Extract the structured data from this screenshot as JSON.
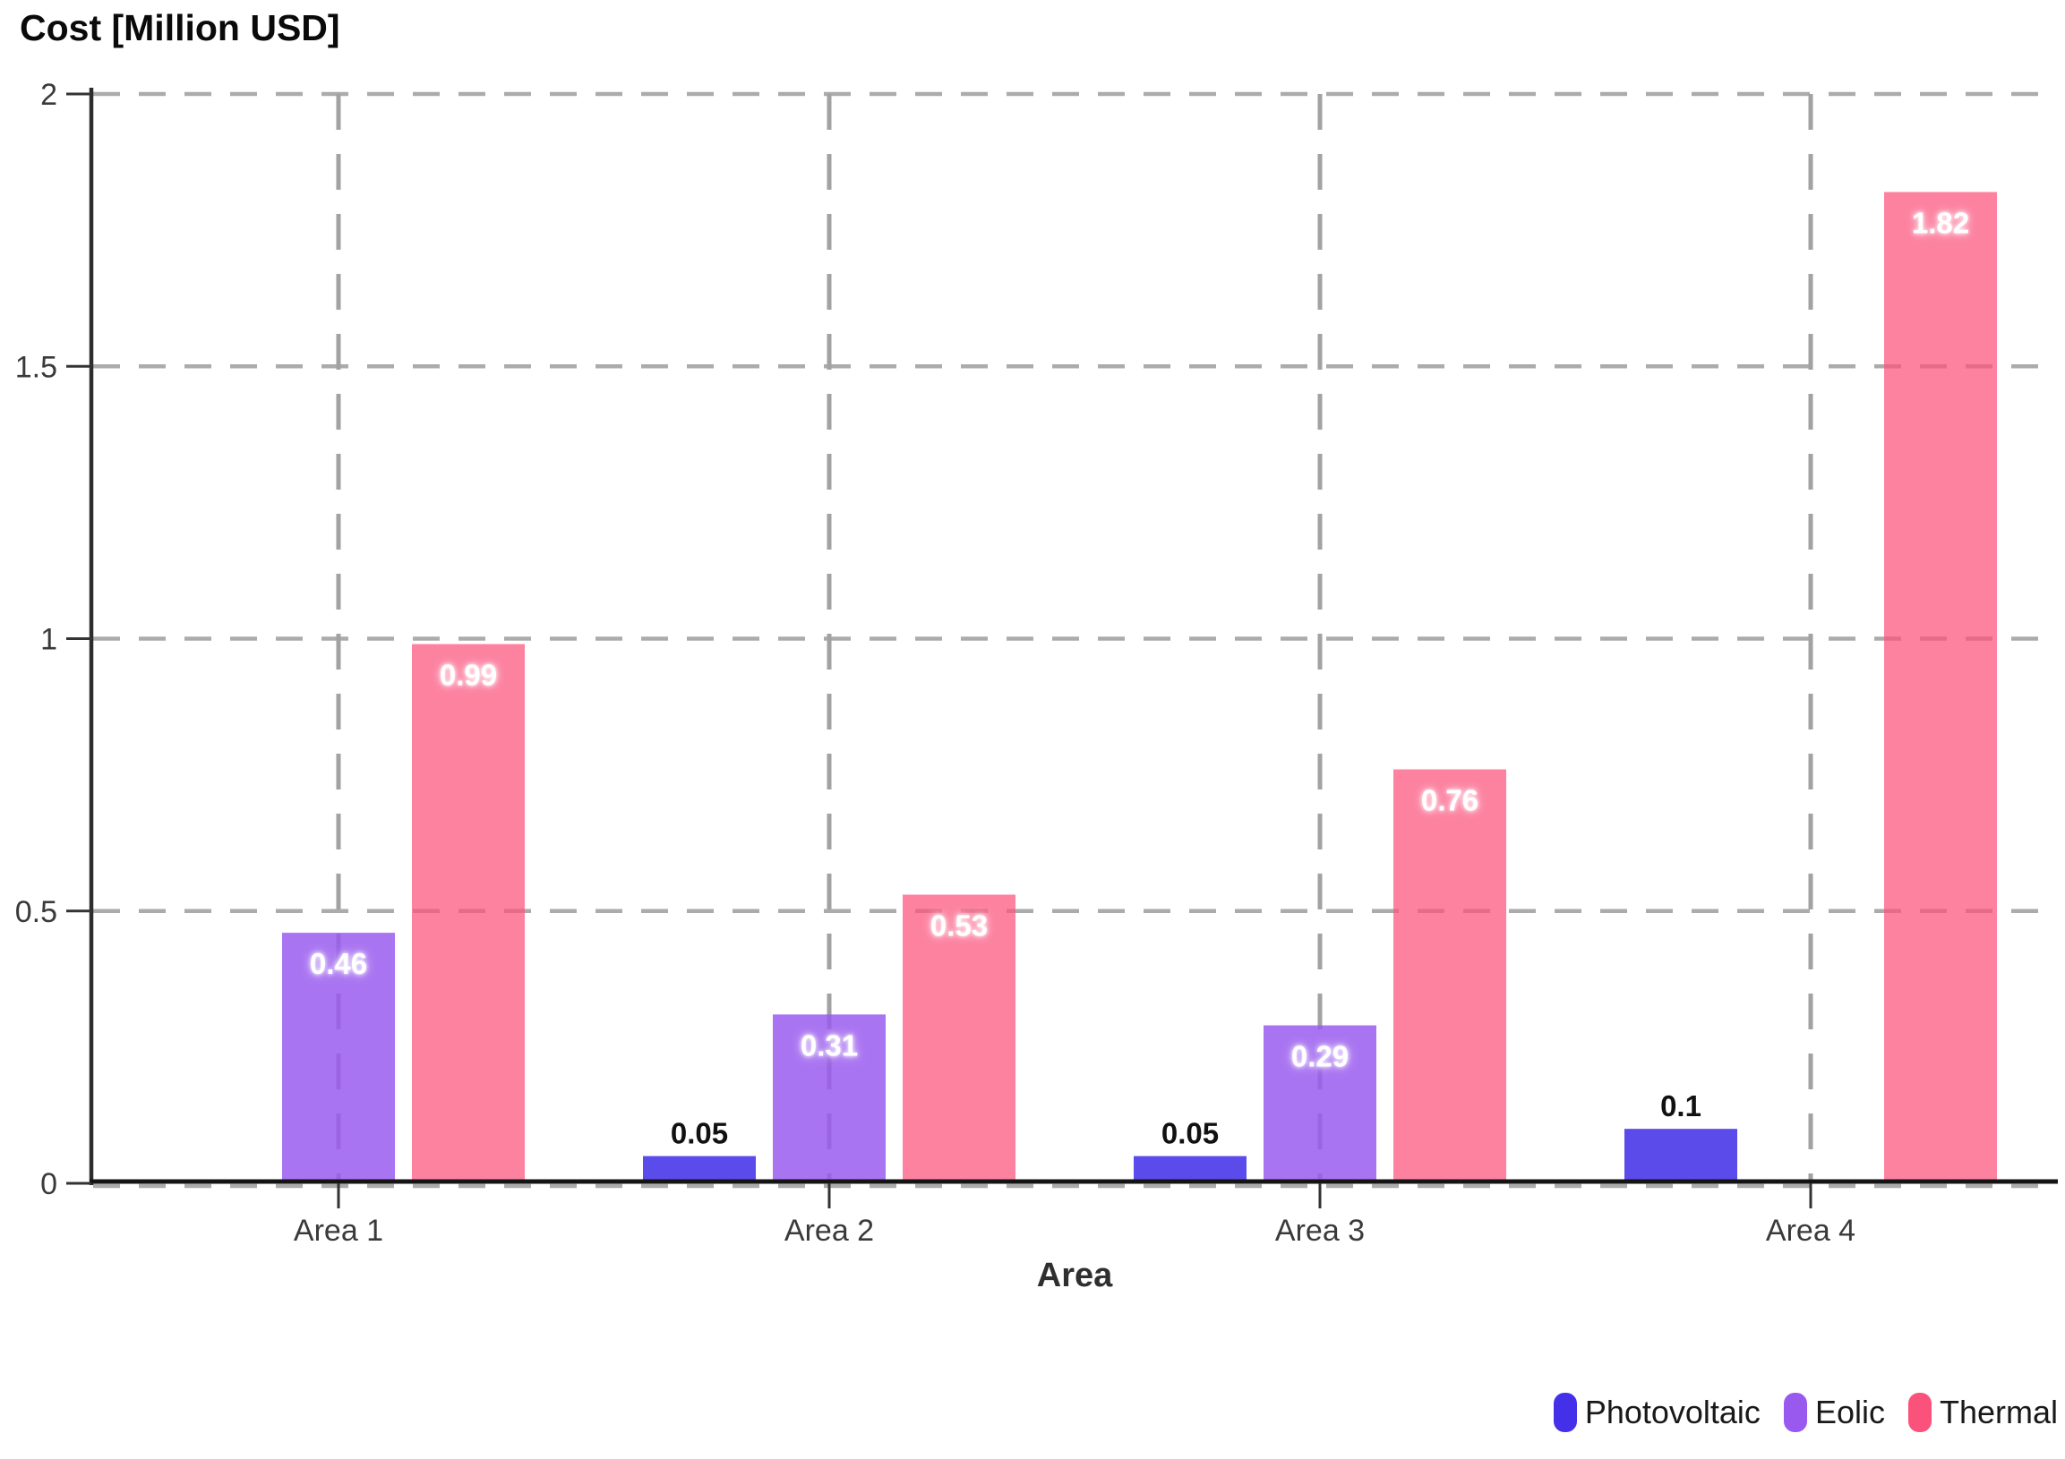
{
  "chart_data": {
    "type": "bar",
    "title": "Cost [Million USD]",
    "xlabel": "Area",
    "ylabel": "Cost [Million USD]",
    "categories": [
      "Area 1",
      "Area 2",
      "Area 3",
      "Area 4"
    ],
    "series": [
      {
        "name": "Photovoltaic",
        "color": "#4430e8",
        "bar_fill": "rgba(68,48,232,0.87)",
        "values": [
          null,
          0.05,
          0.05,
          0.1
        ],
        "value_labels": [
          "",
          "0.05",
          "0.05",
          "0.1"
        ]
      },
      {
        "name": "Eolic",
        "color": "#9959ee",
        "bar_fill": "rgba(153,89,238,0.84)",
        "values": [
          0.46,
          0.31,
          0.29,
          null
        ],
        "value_labels": [
          "0.46",
          "0.31",
          "0.29",
          ""
        ]
      },
      {
        "name": "Thermal",
        "color": "#fb527b",
        "bar_fill": "rgba(251,82,123,0.72)",
        "values": [
          0.99,
          0.53,
          0.76,
          1.82
        ],
        "value_labels": [
          "0.99",
          "0.53",
          "0.76",
          "1.82"
        ]
      }
    ],
    "y_ticks": [
      "0",
      "0.5",
      "1",
      "1.5",
      "2"
    ],
    "ylim": [
      0,
      2
    ],
    "grid": {
      "style": "dashed",
      "horizontal": true,
      "vertical": true
    },
    "legend": {
      "position": "bottom-right"
    }
  }
}
